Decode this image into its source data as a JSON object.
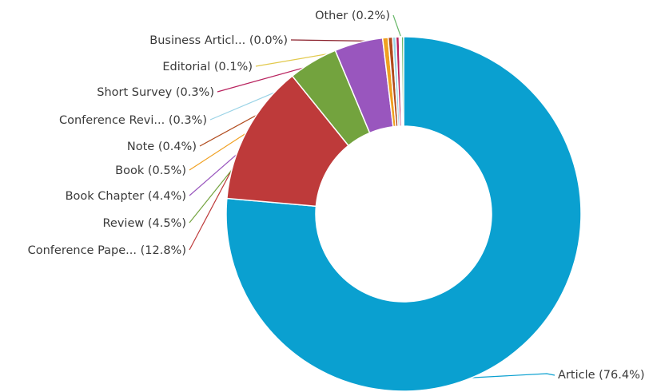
{
  "chart_data": {
    "type": "pie",
    "title": "",
    "donut": true,
    "slices": [
      {
        "label": "Article",
        "display": "Article (76.4%)",
        "value": 76.4,
        "color": "#0aa0d0"
      },
      {
        "label": "Conference Pape...",
        "display": "Conference Pape... (12.8%)",
        "value": 12.8,
        "color": "#be3a3a"
      },
      {
        "label": "Review",
        "display": "Review (4.5%)",
        "value": 4.5,
        "color": "#73a33e"
      },
      {
        "label": "Book Chapter",
        "display": "Book Chapter (4.4%)",
        "value": 4.4,
        "color": "#9956be"
      },
      {
        "label": "Book",
        "display": "Book (0.5%)",
        "value": 0.5,
        "color": "#f0a020"
      },
      {
        "label": "Note",
        "display": "Note (0.4%)",
        "value": 0.4,
        "color": "#b04a1c"
      },
      {
        "label": "Conference Revi...",
        "display": "Conference Revi... (0.3%)",
        "value": 0.3,
        "color": "#9ad3e6"
      },
      {
        "label": "Short Survey",
        "display": "Short Survey (0.3%)",
        "value": 0.3,
        "color": "#b8225e"
      },
      {
        "label": "Editorial",
        "display": "Editorial (0.1%)",
        "value": 0.1,
        "color": "#e2c94c"
      },
      {
        "label": "Business Articl...",
        "display": "Business Articl... (0.0%)",
        "value": 0.0,
        "color": "#8a1f2a"
      },
      {
        "label": "Other",
        "display": "Other (0.2%)",
        "value": 0.2,
        "color": "#69b86a"
      }
    ]
  }
}
